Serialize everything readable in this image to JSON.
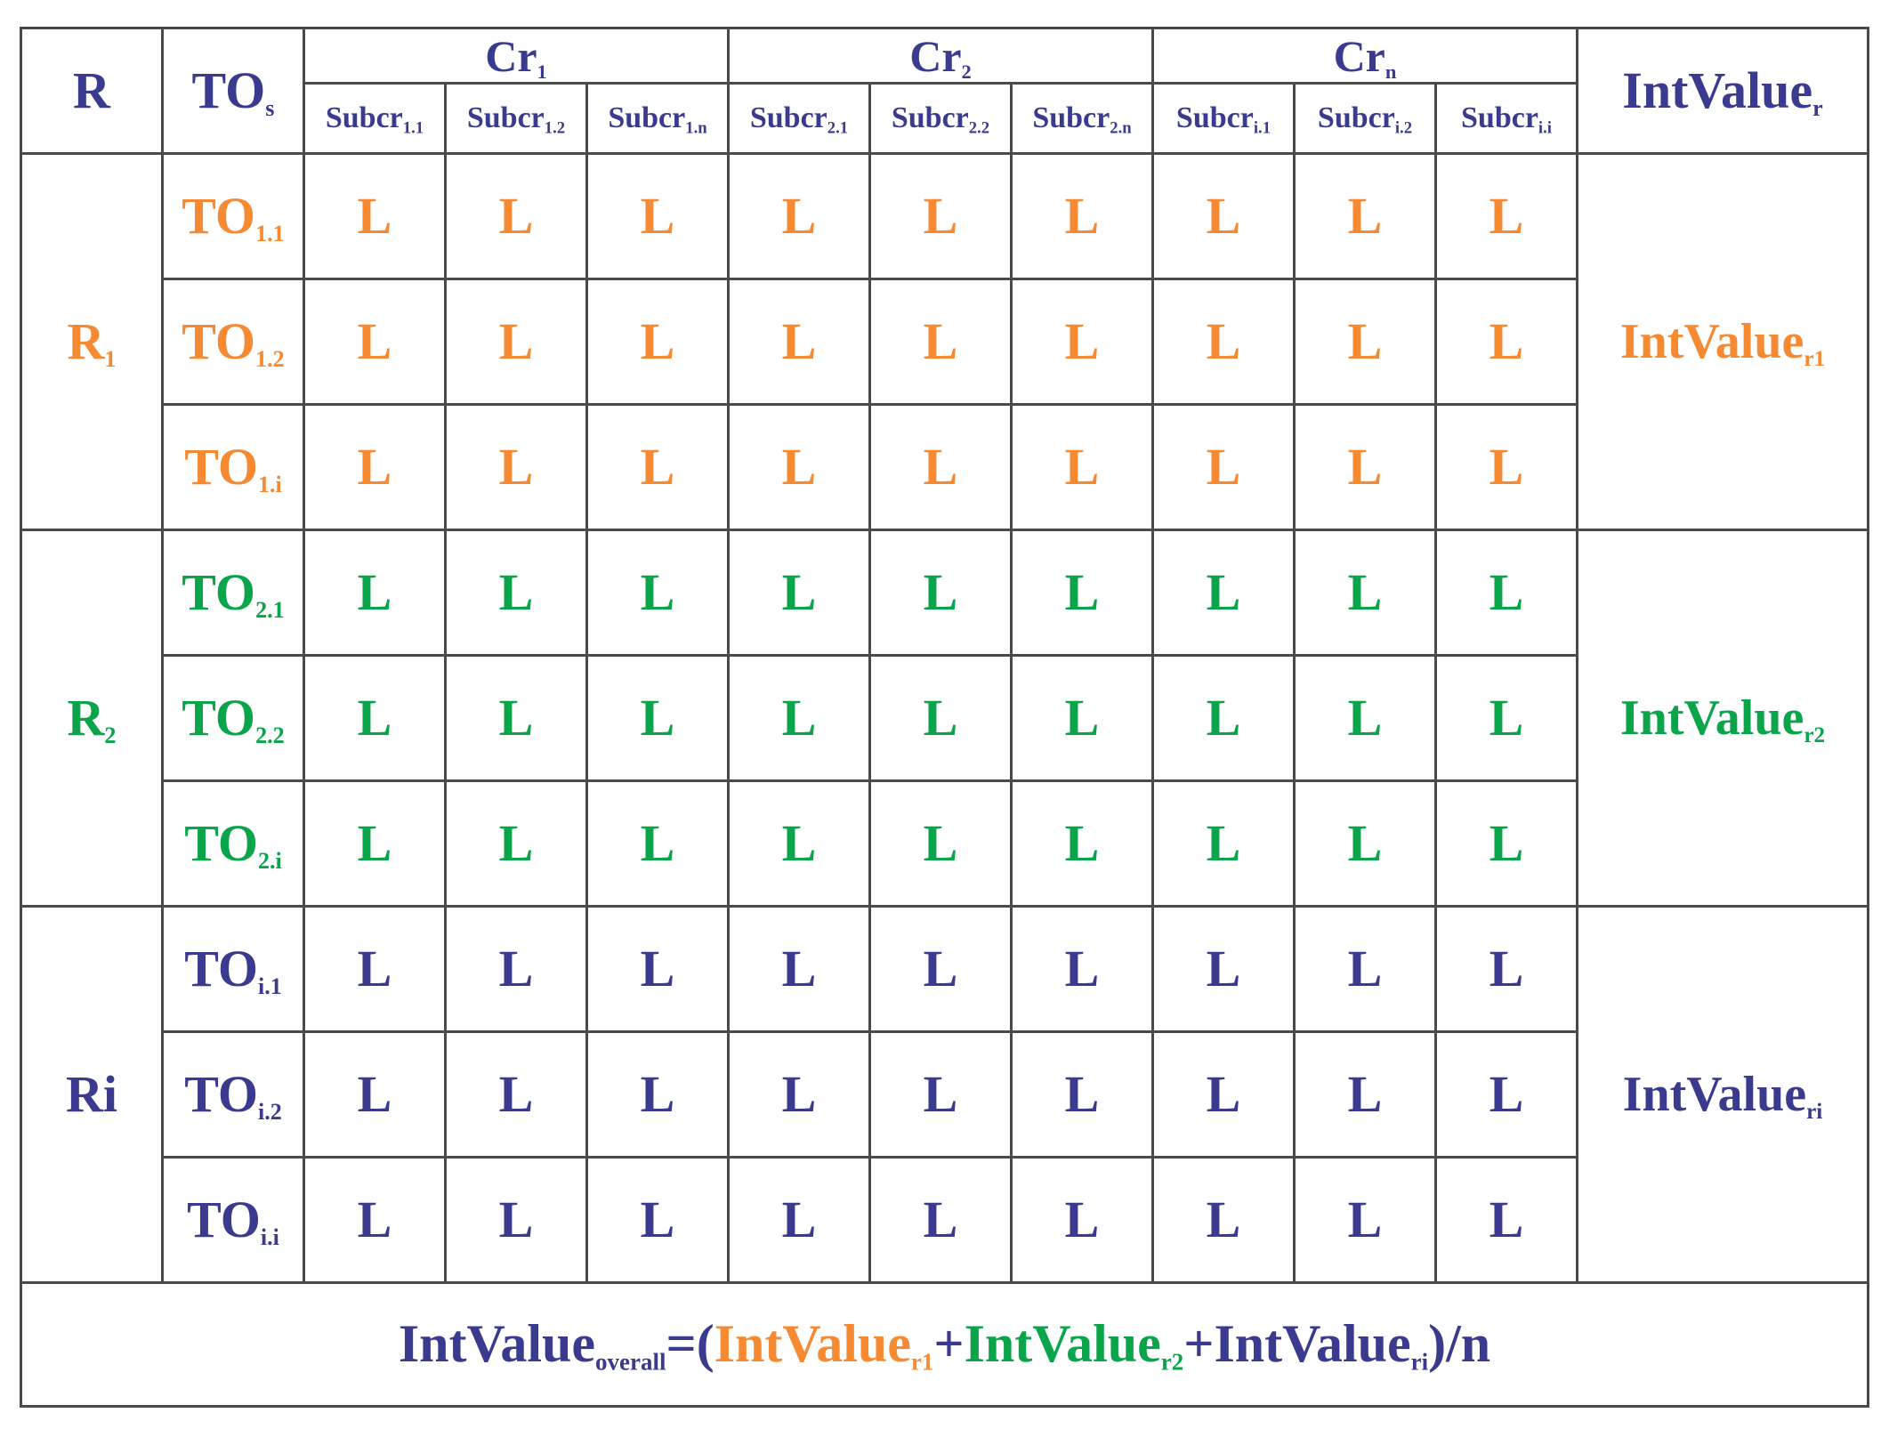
{
  "colors": {
    "header": "#3a3a8e",
    "r1": "#f68a33",
    "r2": "#0aa54a",
    "ri": "#3a3a8e"
  },
  "header": {
    "r": "R",
    "tos": {
      "base": "TO",
      "sub": "s"
    },
    "criteria": [
      {
        "base": "Cr",
        "sub": "1"
      },
      {
        "base": "Cr",
        "sub": "2"
      },
      {
        "base": "Cr",
        "sub": "n"
      }
    ],
    "subcriteria": [
      {
        "base": "Subcr",
        "sub": "1.1"
      },
      {
        "base": "Subcr",
        "sub": "1.2"
      },
      {
        "base": "Subcr",
        "sub": "1.n"
      },
      {
        "base": "Subcr",
        "sub": "2.1"
      },
      {
        "base": "Subcr",
        "sub": "2.2"
      },
      {
        "base": "Subcr",
        "sub": "2.n"
      },
      {
        "base": "Subcr",
        "sub": "i.1"
      },
      {
        "base": "Subcr",
        "sub": "i.2"
      },
      {
        "base": "Subcr",
        "sub": "i.i"
      }
    ],
    "intvalue": {
      "base": "IntValue",
      "sub": "r"
    }
  },
  "groups": [
    {
      "label": {
        "base": "R",
        "sub": "1"
      },
      "color_key": "r1",
      "intvalue": {
        "base": "IntValue",
        "sub": "r1"
      },
      "rows": [
        {
          "to": {
            "base": "TO",
            "sub": "1.1"
          },
          "values": [
            "L",
            "L",
            "L",
            "L",
            "L",
            "L",
            "L",
            "L",
            "L"
          ]
        },
        {
          "to": {
            "base": "TO",
            "sub": "1.2"
          },
          "values": [
            "L",
            "L",
            "L",
            "L",
            "L",
            "L",
            "L",
            "L",
            "L"
          ]
        },
        {
          "to": {
            "base": "TO",
            "sub": "1.i"
          },
          "values": [
            "L",
            "L",
            "L",
            "L",
            "L",
            "L",
            "L",
            "L",
            "L"
          ]
        }
      ]
    },
    {
      "label": {
        "base": "R",
        "sub": "2"
      },
      "color_key": "r2",
      "intvalue": {
        "base": "IntValue",
        "sub": "r2"
      },
      "rows": [
        {
          "to": {
            "base": "TO",
            "sub": "2.1"
          },
          "values": [
            "L",
            "L",
            "L",
            "L",
            "L",
            "L",
            "L",
            "L",
            "L"
          ]
        },
        {
          "to": {
            "base": "TO",
            "sub": "2.2"
          },
          "values": [
            "L",
            "L",
            "L",
            "L",
            "L",
            "L",
            "L",
            "L",
            "L"
          ]
        },
        {
          "to": {
            "base": "TO",
            "sub": "2.i"
          },
          "values": [
            "L",
            "L",
            "L",
            "L",
            "L",
            "L",
            "L",
            "L",
            "L"
          ]
        }
      ]
    },
    {
      "label": {
        "base": "Ri",
        "sub": ""
      },
      "color_key": "ri",
      "intvalue": {
        "base": "IntValue",
        "sub": "ri"
      },
      "rows": [
        {
          "to": {
            "base": "TO",
            "sub": "i.1"
          },
          "values": [
            "L",
            "L",
            "L",
            "L",
            "L",
            "L",
            "L",
            "L",
            "L"
          ]
        },
        {
          "to": {
            "base": "TO",
            "sub": "i.2"
          },
          "values": [
            "L",
            "L",
            "L",
            "L",
            "L",
            "L",
            "L",
            "L",
            "L"
          ]
        },
        {
          "to": {
            "base": "TO",
            "sub": "i.i"
          },
          "values": [
            "L",
            "L",
            "L",
            "L",
            "L",
            "L",
            "L",
            "L",
            "L"
          ]
        }
      ]
    }
  ],
  "formula": {
    "lhs_base": "IntValue",
    "lhs_sub": "overall",
    "eq_open": "=(",
    "terms": [
      {
        "base": "IntValue",
        "sub": "r1",
        "color_key": "r1"
      },
      {
        "base": "IntValue",
        "sub": "r2",
        "color_key": "r2"
      },
      {
        "base": "IntValue",
        "sub": "ri",
        "color_key": "ri"
      }
    ],
    "plus": "+",
    "close": ")/n"
  }
}
